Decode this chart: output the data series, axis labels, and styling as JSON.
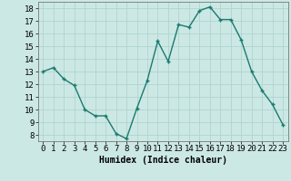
{
  "x": [
    0,
    1,
    2,
    3,
    4,
    5,
    6,
    7,
    8,
    9,
    10,
    11,
    12,
    13,
    14,
    15,
    16,
    17,
    18,
    19,
    20,
    21,
    22,
    23
  ],
  "y": [
    13,
    13.3,
    12.4,
    11.9,
    10.0,
    9.5,
    9.5,
    8.1,
    7.7,
    10.1,
    12.3,
    15.4,
    13.8,
    16.7,
    16.5,
    17.8,
    18.1,
    17.1,
    17.1,
    15.5,
    13.0,
    11.5,
    10.4,
    8.8
  ],
  "line_color": "#1a7a6e",
  "marker": "+",
  "marker_size": 3,
  "marker_linewidth": 1.0,
  "line_width": 1.0,
  "background_color": "#cce8e5",
  "grid_color": "#b0d4d0",
  "xlabel": "Humidex (Indice chaleur)",
  "xlim": [
    -0.5,
    23.5
  ],
  "ylim": [
    7.5,
    18.5
  ],
  "yticks": [
    8,
    9,
    10,
    11,
    12,
    13,
    14,
    15,
    16,
    17,
    18
  ],
  "xticks": [
    0,
    1,
    2,
    3,
    4,
    5,
    6,
    7,
    8,
    9,
    10,
    11,
    12,
    13,
    14,
    15,
    16,
    17,
    18,
    19,
    20,
    21,
    22,
    23
  ],
  "xlabel_fontsize": 7,
  "tick_fontsize": 6.5,
  "xlabel_fontweight": "bold"
}
